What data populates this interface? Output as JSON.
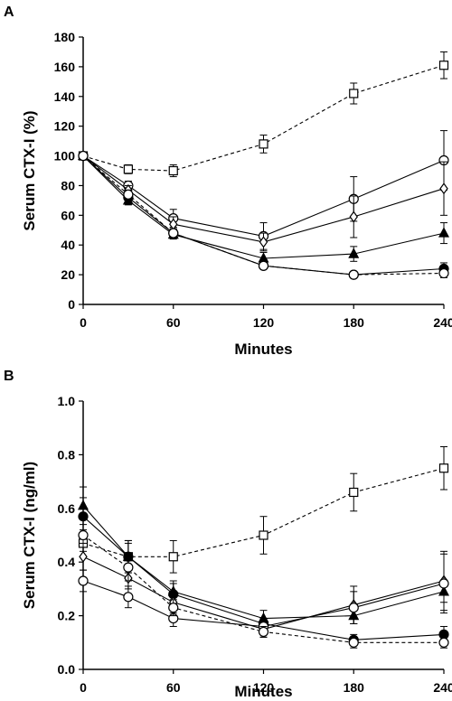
{
  "chart_data": [
    {
      "panel_label": "A",
      "type": "line",
      "xlabel": "Minutes",
      "ylabel": "Serum CTX-I (%)",
      "xlim": [
        0,
        240
      ],
      "ylim": [
        0,
        180
      ],
      "x_ticks": [
        "0",
        "60",
        "120",
        "180",
        "240"
      ],
      "y_ticks": [
        "0",
        "20",
        "40",
        "60",
        "80",
        "100",
        "120",
        "140",
        "160",
        "180"
      ],
      "grid": false,
      "series": [
        {
          "marker": "square-open",
          "line": "dashed",
          "x": [
            0,
            30,
            60,
            120,
            180,
            240
          ],
          "y": [
            100,
            91,
            90,
            108,
            142,
            161
          ],
          "err": [
            0,
            3,
            4,
            6,
            7,
            9
          ]
        },
        {
          "marker": "circle-open",
          "line": "solid",
          "x": [
            0,
            30,
            60,
            120,
            180,
            240
          ],
          "y": [
            100,
            80,
            58,
            46,
            71,
            97
          ],
          "err": [
            0,
            3,
            6,
            9,
            15,
            20
          ]
        },
        {
          "marker": "diamond-open",
          "line": "solid",
          "x": [
            0,
            30,
            60,
            120,
            180,
            240
          ],
          "y": [
            100,
            77,
            54,
            42,
            59,
            78
          ],
          "err": [
            0,
            3,
            5,
            6,
            14,
            18
          ]
        },
        {
          "marker": "triangle-filled",
          "line": "solid",
          "x": [
            0,
            30,
            60,
            120,
            180,
            240
          ],
          "y": [
            100,
            70,
            47,
            31,
            34,
            48
          ],
          "err": [
            0,
            3,
            3,
            4,
            5,
            7
          ]
        },
        {
          "marker": "circle-filled",
          "line": "solid",
          "x": [
            0,
            30,
            60,
            120,
            180,
            240
          ],
          "y": [
            100,
            72,
            48,
            26,
            20,
            24
          ],
          "err": [
            0,
            3,
            3,
            2,
            2,
            4
          ]
        },
        {
          "marker": "circle-open",
          "line": "dashed",
          "x": [
            0,
            30,
            60,
            120,
            180,
            240
          ],
          "y": [
            100,
            74,
            48,
            26,
            20,
            21
          ],
          "err": [
            0,
            3,
            3,
            2,
            2,
            3
          ]
        }
      ]
    },
    {
      "panel_label": "B",
      "type": "line",
      "xlabel": "Minutes",
      "ylabel": "Serum CTX-I (ng/ml)",
      "xlim": [
        0,
        240
      ],
      "ylim": [
        0,
        1.0
      ],
      "x_ticks": [
        "0",
        "60",
        "120",
        "180",
        "240"
      ],
      "y_ticks": [
        "0.0",
        "0.2",
        "0.4",
        "0.6",
        "0.8",
        "1.0"
      ],
      "grid": false,
      "series": [
        {
          "marker": "square-open",
          "line": "dashed",
          "x": [
            0,
            30,
            60,
            120,
            180,
            240
          ],
          "y": [
            0.47,
            0.42,
            0.42,
            0.5,
            0.66,
            0.75
          ],
          "err": [
            0.05,
            0.05,
            0.06,
            0.07,
            0.07,
            0.08
          ]
        },
        {
          "marker": "triangle-filled",
          "line": "solid",
          "x": [
            0,
            30,
            60,
            120,
            180,
            240
          ],
          "y": [
            0.61,
            0.42,
            0.29,
            0.19,
            0.2,
            0.29
          ],
          "err": [
            0.07,
            0.06,
            0.04,
            0.03,
            0.03,
            0.04
          ]
        },
        {
          "marker": "circle-filled",
          "line": "solid",
          "x": [
            0,
            30,
            60,
            120,
            180,
            240
          ],
          "y": [
            0.57,
            0.42,
            0.28,
            0.17,
            0.11,
            0.13
          ],
          "err": [
            0.07,
            0.06,
            0.04,
            0.02,
            0.02,
            0.03
          ]
        },
        {
          "marker": "diamond-open",
          "line": "solid",
          "x": [
            0,
            30,
            60,
            120,
            180,
            240
          ],
          "y": [
            0.42,
            0.34,
            0.25,
            0.15,
            0.24,
            0.33
          ],
          "err": [
            0.05,
            0.04,
            0.04,
            0.03,
            0.07,
            0.11
          ]
        },
        {
          "marker": "circle-open",
          "line": "solid",
          "x": [
            0,
            30,
            60,
            120,
            180,
            240
          ],
          "y": [
            0.33,
            0.27,
            0.19,
            0.16,
            0.23,
            0.32
          ],
          "err": [
            0.04,
            0.04,
            0.03,
            0.02,
            0.06,
            0.11
          ]
        },
        {
          "marker": "circle-open",
          "line": "dashed",
          "x": [
            0,
            30,
            60,
            120,
            180,
            240
          ],
          "y": [
            0.5,
            0.38,
            0.23,
            0.14,
            0.1,
            0.1
          ],
          "err": [
            0.06,
            0.05,
            0.03,
            0.02,
            0.02,
            0.02
          ]
        }
      ]
    }
  ]
}
